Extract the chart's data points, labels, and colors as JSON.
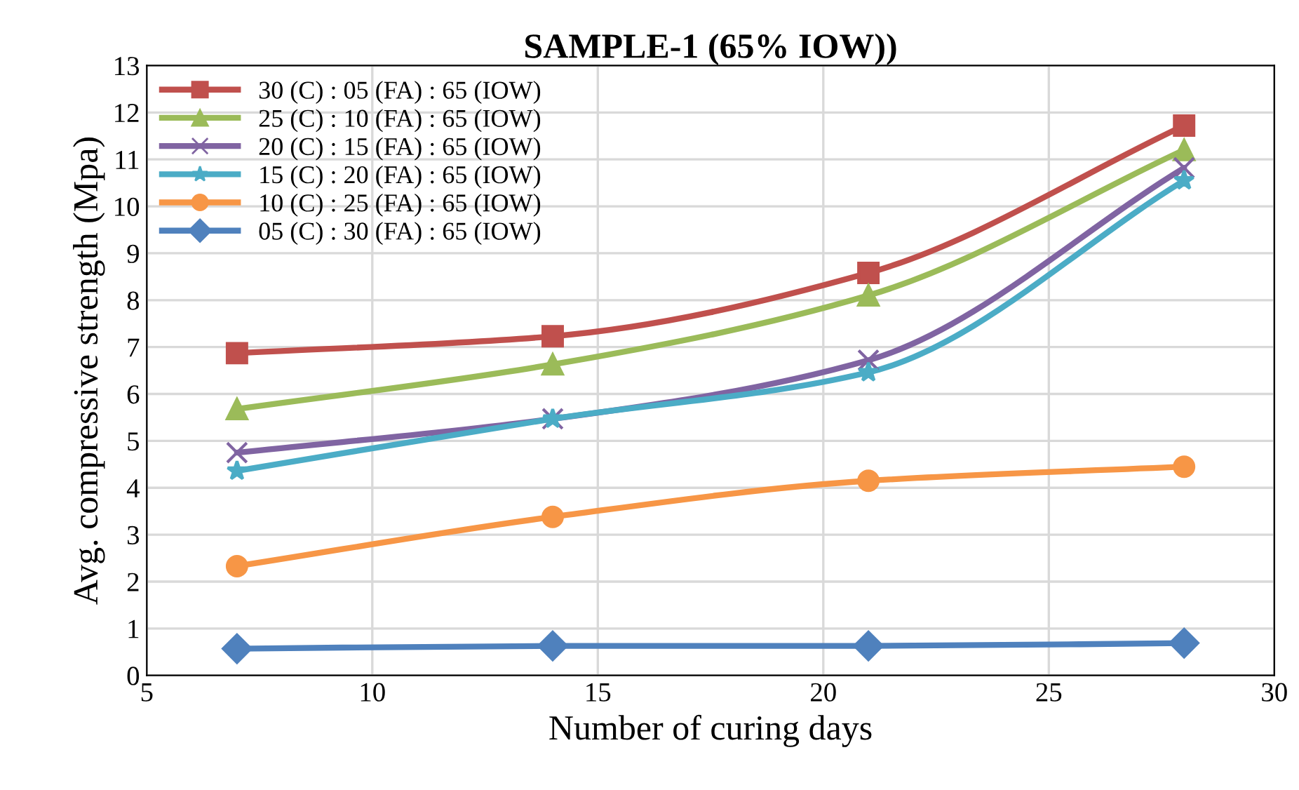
{
  "chart_data": {
    "type": "line",
    "title": "SAMPLE-1 (65% IOW))",
    "xlabel": "Number of curing days",
    "ylabel": "Avg. compressive strength (Mpa)",
    "x": [
      7,
      14,
      21,
      28
    ],
    "xlim": [
      5,
      30
    ],
    "xticks": [
      5,
      10,
      15,
      20,
      25,
      30
    ],
    "ylim": [
      0,
      13
    ],
    "yticks": [
      0,
      1,
      2,
      3,
      4,
      5,
      6,
      7,
      8,
      9,
      10,
      11,
      12,
      13
    ],
    "grid": true,
    "legend": "top left",
    "line_style": "solid",
    "series": [
      {
        "name": "30 (C) : 05 (FA) : 65 (IOW)",
        "color": "#c0504d",
        "marker": "square",
        "values": [
          6.87,
          7.23,
          8.58,
          11.72
        ]
      },
      {
        "name": "25 (C) : 10 (FA) : 65 (IOW)",
        "color": "#9bbb59",
        "marker": "triangle",
        "values": [
          5.68,
          6.63,
          8.1,
          11.2
        ]
      },
      {
        "name": "20 (C) : 15 (FA) : 65 (IOW)",
        "color": "#8064a2",
        "marker": "cross",
        "values": [
          4.75,
          5.47,
          6.72,
          10.82
        ]
      },
      {
        "name": "15 (C) : 20 (FA) : 65 (IOW)",
        "color": "#4bacc6",
        "marker": "star",
        "values": [
          4.36,
          5.47,
          6.46,
          10.55
        ]
      },
      {
        "name": "10 (C) : 25 (FA) : 65 (IOW)",
        "color": "#f79646",
        "marker": "circle",
        "values": [
          2.33,
          3.38,
          4.15,
          4.45
        ]
      },
      {
        "name": "05 (C) : 30 (FA) : 65 (IOW)",
        "color": "#4f81bd",
        "marker": "diamond",
        "values": [
          0.57,
          0.63,
          0.63,
          0.69
        ]
      }
    ]
  }
}
